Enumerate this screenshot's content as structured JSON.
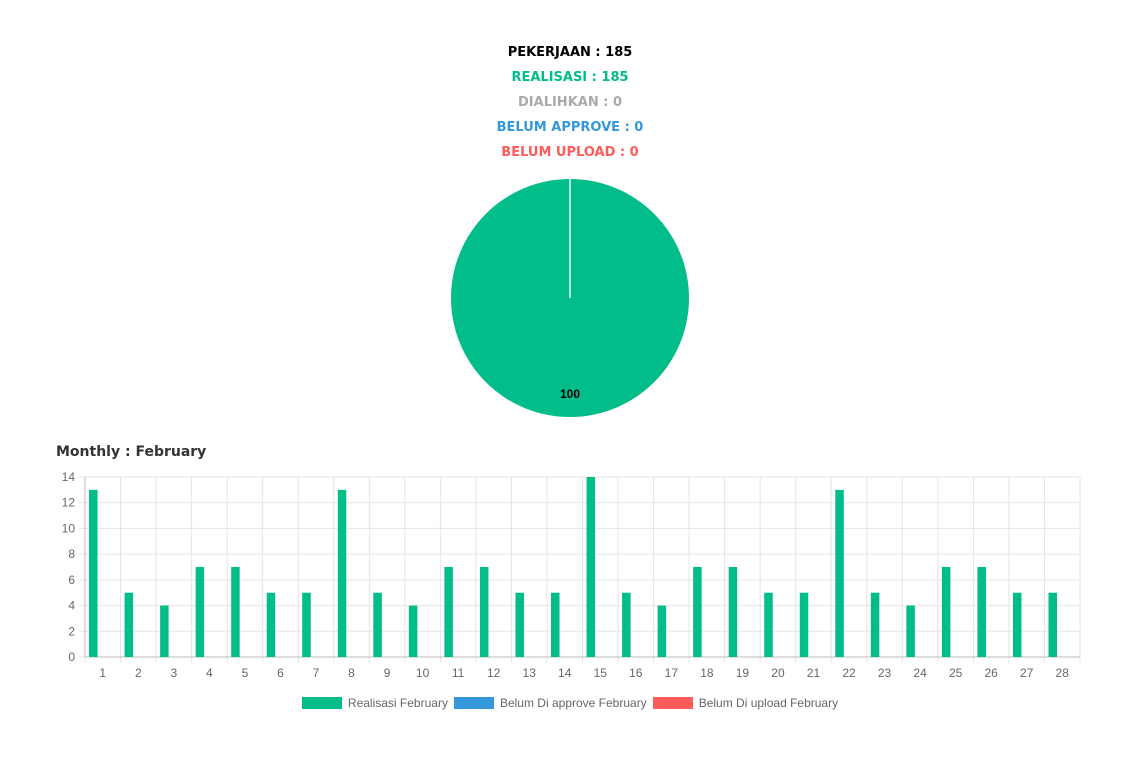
{
  "summary": {
    "pekerjaan": "PEKERJAAN : 185",
    "realisasi": "REALISASI : 185",
    "dialihkan": "DIALIHKAN : 0",
    "belum_approve": "BELUM APPROVE : 0",
    "belum_upload": "BELUM UPLOAD : 0"
  },
  "colors": {
    "pekerjaan": "#000000",
    "realisasi": "#00bd8a",
    "dialihkan": "#aaaaaa",
    "belum_approve": "#3498db",
    "belum_upload": "#ff5b5b"
  },
  "monthly_title": "Monthly : February",
  "chart_data": [
    {
      "type": "pie",
      "slices": [
        {
          "value": 100,
          "label": "100",
          "color": "#00bd8a"
        }
      ]
    },
    {
      "type": "bar",
      "categories": [
        "1",
        "2",
        "3",
        "4",
        "5",
        "6",
        "7",
        "8",
        "9",
        "10",
        "11",
        "12",
        "13",
        "14",
        "15",
        "16",
        "17",
        "18",
        "19",
        "20",
        "21",
        "22",
        "23",
        "24",
        "25",
        "26",
        "27",
        "28"
      ],
      "series": [
        {
          "name": "Realisasi February",
          "color": "#00bd8a",
          "values": [
            13,
            5,
            4,
            7,
            7,
            5,
            5,
            13,
            5,
            4,
            7,
            7,
            5,
            5,
            14,
            5,
            4,
            7,
            7,
            5,
            5,
            13,
            5,
            4,
            7,
            7,
            5,
            5
          ]
        },
        {
          "name": "Belum Di approve February",
          "color": "#3498db",
          "values": [
            0,
            0,
            0,
            0,
            0,
            0,
            0,
            0,
            0,
            0,
            0,
            0,
            0,
            0,
            0,
            0,
            0,
            0,
            0,
            0,
            0,
            0,
            0,
            0,
            0,
            0,
            0,
            0
          ]
        },
        {
          "name": "Belum Di upload February",
          "color": "#ff5b5b",
          "values": [
            0,
            0,
            0,
            0,
            0,
            0,
            0,
            0,
            0,
            0,
            0,
            0,
            0,
            0,
            0,
            0,
            0,
            0,
            0,
            0,
            0,
            0,
            0,
            0,
            0,
            0,
            0,
            0
          ]
        }
      ],
      "ylim": [
        0,
        14
      ],
      "yticks": [
        0,
        2,
        4,
        6,
        8,
        10,
        12,
        14
      ],
      "grid": true,
      "legend": "bottom"
    }
  ]
}
